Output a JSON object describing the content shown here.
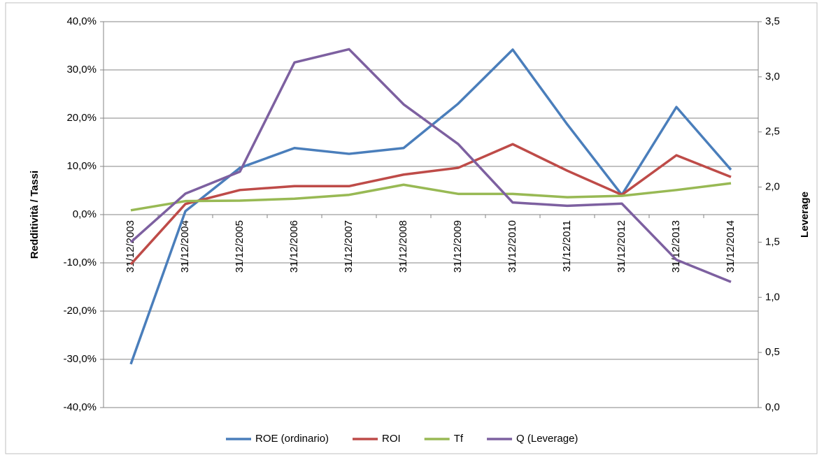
{
  "chart_data": {
    "type": "line",
    "y_label": "Redditività / Tassi",
    "y2_label": "Leverage",
    "categories": [
      "31/12/2003",
      "31/12/2004",
      "31/12/2005",
      "31/12/2006",
      "31/12/2007",
      "31/12/2008",
      "31/12/2009",
      "31/12/2010",
      "31/12/2011",
      "31/12/2012",
      "31/12/2013",
      "31/12/2014"
    ],
    "series": [
      {
        "name": "ROE (ordinario)",
        "color": "#4a7ebb",
        "values": [
          -31.0,
          0.7,
          9.7,
          13.8,
          12.6,
          13.8,
          23.0,
          34.2,
          18.7,
          4.1,
          22.3,
          9.3
        ]
      },
      {
        "name": "ROI",
        "color": "#be4b48",
        "values": [
          -10.3,
          2.2,
          5.1,
          5.9,
          5.9,
          8.3,
          9.7,
          14.6,
          9.1,
          4.1,
          12.3,
          7.8
        ]
      },
      {
        "name": "Tf",
        "color": "#98b954",
        "values": [
          0.9,
          2.8,
          2.9,
          3.3,
          4.1,
          6.2,
          4.3,
          4.3,
          3.6,
          3.9,
          5.1,
          6.5
        ]
      },
      {
        "name": "Q (Leverage)",
        "color": "#7d60a0",
        "axis": "y2",
        "values": [
          1.5,
          1.94,
          2.14,
          3.13,
          3.25,
          2.75,
          2.39,
          1.86,
          1.83,
          1.85,
          1.34,
          1.14
        ]
      }
    ],
    "ylim": [
      -40,
      40
    ],
    "yticks": [
      {
        "value": -40,
        "label": "-40,0%"
      },
      {
        "value": -30,
        "label": "-30,0%"
      },
      {
        "value": -20,
        "label": "-20,0%"
      },
      {
        "value": -10,
        "label": "-10,0%"
      },
      {
        "value": 0,
        "label": "0,0%"
      },
      {
        "value": 10,
        "label": "10,0%"
      },
      {
        "value": 20,
        "label": "20,0%"
      },
      {
        "value": 30,
        "label": "30,0%"
      },
      {
        "value": 40,
        "label": "40,0%"
      }
    ],
    "y2lim": [
      0,
      3.5
    ],
    "y2ticks": [
      {
        "value": 0,
        "label": "0,0"
      },
      {
        "value": 0.5,
        "label": "0,5"
      },
      {
        "value": 1,
        "label": "1,0"
      },
      {
        "value": 1.5,
        "label": "1,5"
      },
      {
        "value": 2,
        "label": "2,0"
      },
      {
        "value": 2.5,
        "label": "2,5"
      },
      {
        "value": 3,
        "label": "3,0"
      },
      {
        "value": 3.5,
        "label": "3,5"
      }
    ],
    "grid": true,
    "legend": "bottom"
  }
}
